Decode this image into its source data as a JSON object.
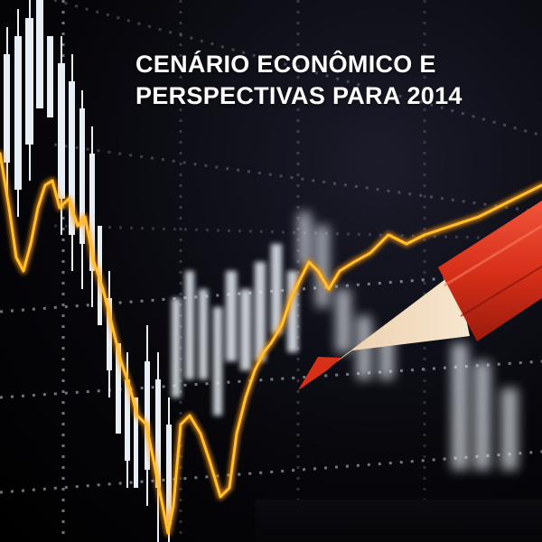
{
  "cover": {
    "title_line_1": "CENÁRIO ECONÔMICO E",
    "title_line_2": "PERSPECTIVAS PARA 2014"
  },
  "visual": {
    "background_color": "#05050a",
    "trend_line_color": "#ffb020",
    "candle_color": "#e8eef5",
    "grid_dot_color": "#c9cfe0",
    "pencil_color": "#e0321c",
    "pencil_wood_color": "#f0dcc0",
    "icon": "red-pencil-icon"
  }
}
